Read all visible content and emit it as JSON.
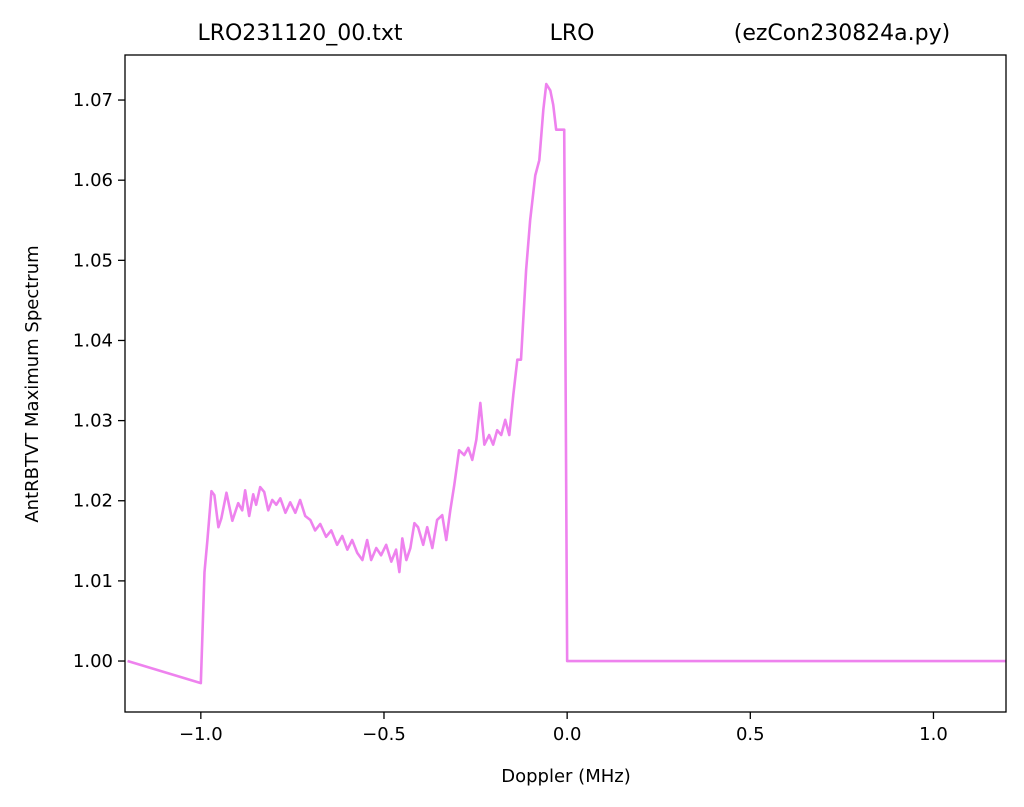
{
  "chart_data": {
    "type": "line",
    "title": [
      "LRO231120_00.txt",
      "LRO",
      "(ezCon230824a.py)"
    ],
    "x_label": "Doppler (MHz)",
    "y_label": "AntRBTVT Maximum Spectrum",
    "x": [
      -1.2,
      -1.0,
      -0.99,
      -0.982,
      -0.971,
      -0.963,
      -0.952,
      -0.944,
      -0.93,
      -0.914,
      -0.898,
      -0.887,
      -0.879,
      -0.868,
      -0.857,
      -0.849,
      -0.838,
      -0.827,
      -0.816,
      -0.805,
      -0.794,
      -0.783,
      -0.769,
      -0.756,
      -0.742,
      -0.729,
      -0.715,
      -0.701,
      -0.688,
      -0.674,
      -0.658,
      -0.644,
      -0.628,
      -0.614,
      -0.6,
      -0.587,
      -0.573,
      -0.559,
      -0.546,
      -0.535,
      -0.521,
      -0.508,
      -0.494,
      -0.48,
      -0.467,
      -0.458,
      -0.45,
      -0.439,
      -0.428,
      -0.417,
      -0.407,
      -0.393,
      -0.382,
      -0.368,
      -0.355,
      -0.341,
      -0.33,
      -0.319,
      -0.308,
      -0.295,
      -0.281,
      -0.27,
      -0.259,
      -0.248,
      -0.237,
      -0.226,
      -0.213,
      -0.202,
      -0.191,
      -0.18,
      -0.169,
      -0.158,
      -0.147,
      -0.136,
      -0.126,
      -0.112,
      -0.101,
      -0.087,
      -0.076,
      -0.065,
      -0.057,
      -0.046,
      -0.038,
      -0.03,
      -0.016,
      -0.008,
      0.0,
      1.2
    ],
    "series": [
      {
        "color": "#ee82ee",
        "values": [
          1.0,
          0.99725,
          1.0111,
          1.0151,
          1.0212,
          1.0207,
          1.0167,
          1.0178,
          1.021,
          1.0175,
          1.0197,
          1.0188,
          1.0213,
          1.0181,
          1.0208,
          1.0195,
          1.0217,
          1.0211,
          1.0188,
          1.0201,
          1.0195,
          1.0203,
          1.0185,
          1.0198,
          1.0185,
          1.0201,
          1.0181,
          1.0176,
          1.0163,
          1.0171,
          1.0155,
          1.0163,
          1.0145,
          1.0156,
          1.0139,
          1.0151,
          1.0135,
          1.0126,
          1.0151,
          1.0126,
          1.0141,
          1.0132,
          1.0145,
          1.0124,
          1.0139,
          1.0111,
          1.0153,
          1.0126,
          1.0141,
          1.0172,
          1.0167,
          1.0145,
          1.0167,
          1.0141,
          1.0176,
          1.0182,
          1.0151,
          1.0188,
          1.022,
          1.0263,
          1.0257,
          1.0266,
          1.0251,
          1.0276,
          1.0322,
          1.027,
          1.0282,
          1.027,
          1.0288,
          1.0282,
          1.0301,
          1.0282,
          1.0332,
          1.0376,
          1.0376,
          1.0488,
          1.055,
          1.0606,
          1.0625,
          1.0688,
          1.072,
          1.0712,
          1.0694,
          1.0663,
          1.0663,
          1.0663,
          1.0,
          1.0
        ]
      }
    ],
    "xlim": [
      -1.207,
      1.198
    ],
    "ylim": [
      0.99364,
      1.07562
    ],
    "xticks": [
      {
        "value": -1.0,
        "label": "−1.0"
      },
      {
        "value": -0.5,
        "label": "−0.5"
      },
      {
        "value": 0.0,
        "label": "0.0"
      },
      {
        "value": 0.5,
        "label": "0.5"
      },
      {
        "value": 1.0,
        "label": "1.0"
      }
    ],
    "yticks": [
      {
        "value": 1.0,
        "label": "1.00"
      },
      {
        "value": 1.01,
        "label": "1.01"
      },
      {
        "value": 1.02,
        "label": "1.02"
      },
      {
        "value": 1.03,
        "label": "1.03"
      },
      {
        "value": 1.04,
        "label": "1.04"
      },
      {
        "value": 1.05,
        "label": "1.05"
      },
      {
        "value": 1.06,
        "label": "1.06"
      },
      {
        "value": 1.07,
        "label": "1.07"
      }
    ],
    "grid": false
  }
}
